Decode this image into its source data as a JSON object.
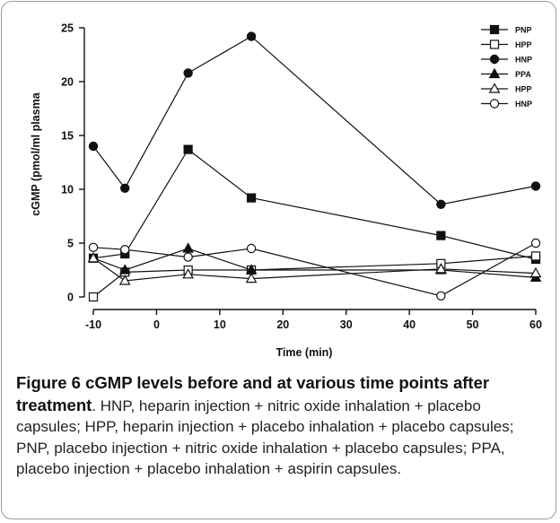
{
  "chart_data": {
    "type": "line",
    "xlabel": "Time (min)",
    "ylabel": "cGMP (pmol/ml plasma",
    "xlim": [
      -10,
      60
    ],
    "ylim": [
      0,
      25
    ],
    "xticks": [
      -10,
      0,
      10,
      20,
      30,
      40,
      50,
      60
    ],
    "yticks": [
      0,
      5,
      10,
      15,
      20,
      25
    ],
    "x": [
      -10,
      -5,
      5,
      15,
      45,
      60
    ],
    "grid": false,
    "legend_position": "top-right",
    "series": [
      {
        "name": "PNP",
        "marker": "square",
        "filled": true,
        "values": [
          3.6,
          4.0,
          13.7,
          9.2,
          5.7,
          3.5
        ]
      },
      {
        "name": "HPP",
        "marker": "square",
        "filled": false,
        "values": [
          0.0,
          2.3,
          2.5,
          2.5,
          3.1,
          3.8
        ]
      },
      {
        "name": "HNP",
        "marker": "circle",
        "filled": true,
        "values": [
          14.0,
          10.1,
          20.8,
          24.2,
          8.6,
          10.3
        ]
      },
      {
        "name": "PPA",
        "marker": "triangle",
        "filled": true,
        "values": [
          3.6,
          2.5,
          4.5,
          2.5,
          2.5,
          1.8
        ]
      },
      {
        "name": "HPP",
        "marker": "triangle",
        "filled": false,
        "values": [
          3.6,
          1.5,
          2.1,
          1.7,
          2.6,
          2.2
        ]
      },
      {
        "name": "HNP",
        "marker": "circle",
        "filled": false,
        "values": [
          4.6,
          4.4,
          3.7,
          4.5,
          0.1,
          5.0
        ]
      }
    ]
  },
  "caption": {
    "lead": "Figure 6 cGMP levels before and at various time points after treatment",
    "body": ". HNP, heparin injection + nitric oxide inhalation + placebo capsules; HPP, heparin injection + placebo inhalation + placebo capsules; PNP, placebo injection + nitric oxide inhalation + placebo capsules; PPA, placebo injection + placebo inhalation + aspirin capsules."
  }
}
